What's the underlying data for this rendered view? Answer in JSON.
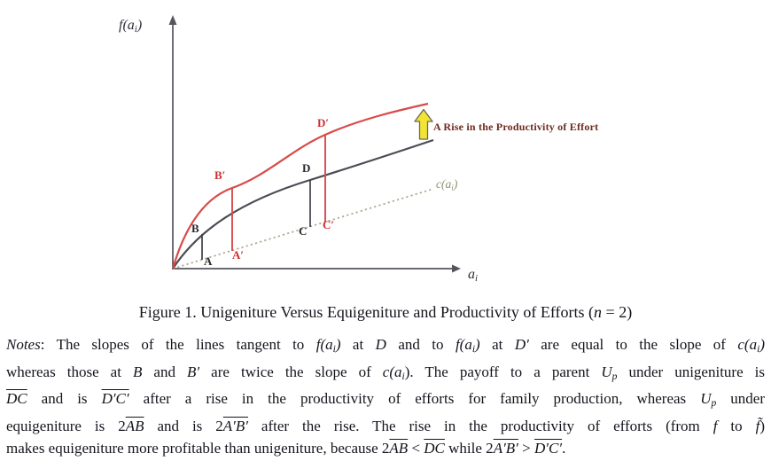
{
  "figure": {
    "y_axis_label": [
      {
        "t": "f(a",
        "s": "i"
      },
      {
        "t": "i",
        "s": "isub"
      },
      {
        "t": ")",
        "s": "i"
      }
    ],
    "x_axis_label": [
      {
        "t": "a",
        "s": "i"
      },
      {
        "t": "i",
        "s": "isub"
      }
    ],
    "cost_label": [
      {
        "t": "c(a",
        "s": "i"
      },
      {
        "t": "i",
        "s": "isub"
      },
      {
        "t": ")",
        "s": "i"
      }
    ],
    "annotation": "A Rise in the Productivity of Effort",
    "points": {
      "a": "A",
      "a_prime": "A′",
      "b": "B",
      "b_prime": "B′",
      "c": "C",
      "c_prime": "C′",
      "d": "D",
      "d_prime": "D′"
    },
    "curves": {
      "before_rise": "f  (black concave production curve)",
      "after_rise": "f̃  (red concave production curve after productivity rise)",
      "cost": "c(ai)  (dotted straight cost line)"
    },
    "colors": {
      "curve_before": "#4b4b55",
      "curve_after": "#d94a4a",
      "cost_line": "#a9a98e",
      "arrow_fill": "#f2e435",
      "arrow_outline": "#6a6a50",
      "point_black": "#26262e",
      "point_red": "#cc2f2f",
      "annotation_text": "#6f2a1e",
      "axis": "#55555c"
    }
  },
  "caption": [
    {
      "t": "Figure 1.  Unigeniture Versus Equigeniture and Productivity of Efforts ("
    },
    {
      "t": "n",
      "s": "i"
    },
    {
      "t": " = 2)"
    }
  ],
  "notes": {
    "lines": [
      [
        {
          "t": "Notes",
          "s": "i"
        },
        {
          "t": ": The slopes of the lines tangent to "
        },
        {
          "t": "f(a",
          "s": "i"
        },
        {
          "t": "i",
          "s": "isub"
        },
        {
          "t": ")",
          "s": "i"
        },
        {
          "t": " at "
        },
        {
          "t": "D",
          "s": "i"
        },
        {
          "t": " and to "
        },
        {
          "t": "f(a",
          "s": "i"
        },
        {
          "t": "i",
          "s": "isub"
        },
        {
          "t": ")",
          "s": "i"
        },
        {
          "t": " at "
        },
        {
          "t": "D′",
          "s": "i"
        },
        {
          "t": " are equal to the slope of "
        },
        {
          "t": "c(a",
          "s": "i"
        },
        {
          "t": "i",
          "s": "isub"
        },
        {
          "t": ")",
          "s": "i"
        }
      ],
      [
        {
          "t": "whereas those at "
        },
        {
          "t": "B",
          "s": "i"
        },
        {
          "t": " and "
        },
        {
          "t": "B′",
          "s": "i"
        },
        {
          "t": " are twice the slope of "
        },
        {
          "t": "c(a",
          "s": "i"
        },
        {
          "t": "i",
          "s": "isub"
        },
        {
          "t": ").",
          "s": "i0"
        },
        {
          "t": " The payoff to a parent "
        },
        {
          "t": "U",
          "s": "i"
        },
        {
          "t": "p",
          "s": "isub"
        },
        {
          "t": " under unigeniture is"
        }
      ],
      [
        {
          "t": "DC",
          "s": "iov"
        },
        {
          "t": " and is "
        },
        {
          "t": "D′C′",
          "s": "iov"
        },
        {
          "t": " after a rise in the productivity of efforts for family production, whereas "
        },
        {
          "t": "U",
          "s": "i"
        },
        {
          "t": "p",
          "s": "isub"
        },
        {
          "t": " under"
        }
      ],
      [
        {
          "t": "equigeniture is 2"
        },
        {
          "t": "AB",
          "s": "iov"
        },
        {
          "t": " and is 2"
        },
        {
          "t": "A′B′",
          "s": "iov"
        },
        {
          "t": " after the rise. The rise in the productivity of efforts (from "
        },
        {
          "t": "f",
          "s": "i"
        },
        {
          "t": " to "
        },
        {
          "t": "f̃",
          "s": "i"
        },
        {
          "t": ")"
        }
      ],
      [
        {
          "t": "makes equigeniture more profitable than unigeniture, because 2"
        },
        {
          "t": "AB",
          "s": "iov"
        },
        {
          "t": " < "
        },
        {
          "t": "DC",
          "s": "iov"
        },
        {
          "t": " while 2"
        },
        {
          "t": "A′B′",
          "s": "iov"
        },
        {
          "t": " > "
        },
        {
          "t": "D′C′",
          "s": "iov"
        },
        {
          "t": "."
        }
      ]
    ]
  }
}
